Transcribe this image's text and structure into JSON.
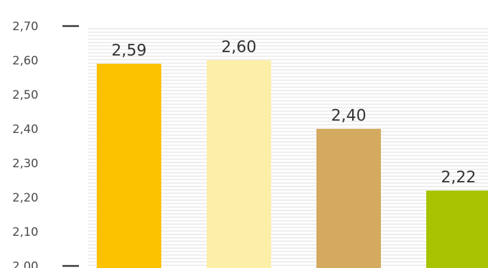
{
  "chart_data": {
    "type": "bar",
    "title": "",
    "xlabel": "",
    "ylabel": "",
    "ylim": [
      2.0,
      2.7
    ],
    "yticks": [
      "2,00",
      "2,10",
      "2,20",
      "2,30",
      "2,40",
      "2,50",
      "2,60",
      "2,70"
    ],
    "categories": [
      "",
      "",
      "",
      ""
    ],
    "values": [
      2.59,
      2.6,
      2.4,
      2.22
    ],
    "value_labels": [
      "2,59",
      "2,60",
      "2,40",
      "2,22"
    ],
    "colors": [
      "#fcc200",
      "#fcf0a8",
      "#d4aa60",
      "#a8c400"
    ],
    "grid": true
  }
}
